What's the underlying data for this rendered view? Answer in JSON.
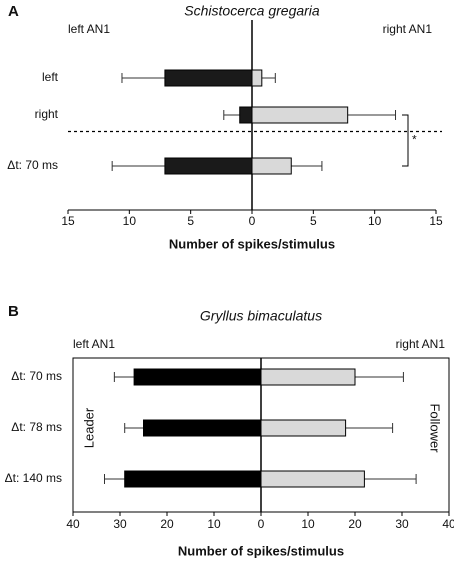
{
  "chart_data": [
    {
      "type": "bar",
      "orientation": "horizontal",
      "frame": false,
      "divider": true,
      "panel_label": "A",
      "title": "Schistocerca gregaria",
      "x_label": "Number of spikes/stimulus",
      "categories": [
        "left",
        "right",
        "Δt: 70 ms"
      ],
      "series": [
        {
          "name": "left AN1",
          "color": "#1a1a1a",
          "values": [
            -7.1,
            -1.0,
            -7.1
          ],
          "errors": [
            3.5,
            1.3,
            4.3
          ]
        },
        {
          "name": "right AN1",
          "color": "#d9d9d9",
          "values": [
            0.8,
            7.8,
            3.2
          ],
          "errors": [
            1.1,
            3.9,
            2.5
          ]
        }
      ],
      "xlim": [
        -15,
        15
      ],
      "xticks": [
        {
          "value": -15,
          "label": "15"
        },
        {
          "value": -10,
          "label": "10"
        },
        {
          "value": -5,
          "label": "5"
        },
        0,
        5,
        10,
        15
      ],
      "annotations": [
        "*"
      ]
    },
    {
      "type": "bar",
      "orientation": "horizontal",
      "frame": true,
      "divider": false,
      "panel_label": "B",
      "title": "Gryllus bimaculatus",
      "x_label": "Number of spikes/stimulus",
      "categories": [
        "Δt: 70 ms",
        "Δt: 78 ms",
        "Δt: 140 ms"
      ],
      "series": [
        {
          "name": "left AN1",
          "color": "#000000",
          "values": [
            -27,
            -25,
            -29
          ],
          "errors": [
            4.2,
            4,
            4.3
          ]
        },
        {
          "name": "right AN1",
          "color": "#d9d9d9",
          "values": [
            20,
            18,
            22
          ],
          "errors": [
            10.3,
            10,
            11
          ]
        }
      ],
      "xlim": [
        -40,
        40
      ],
      "xticks": [
        {
          "value": -40,
          "label": "40"
        },
        {
          "value": -30,
          "label": "30"
        },
        {
          "value": -20,
          "label": "20"
        },
        {
          "value": -10,
          "label": "10"
        },
        0,
        10,
        20,
        30,
        40
      ],
      "annotations": [
        "Leader",
        "Follower"
      ]
    }
  ]
}
